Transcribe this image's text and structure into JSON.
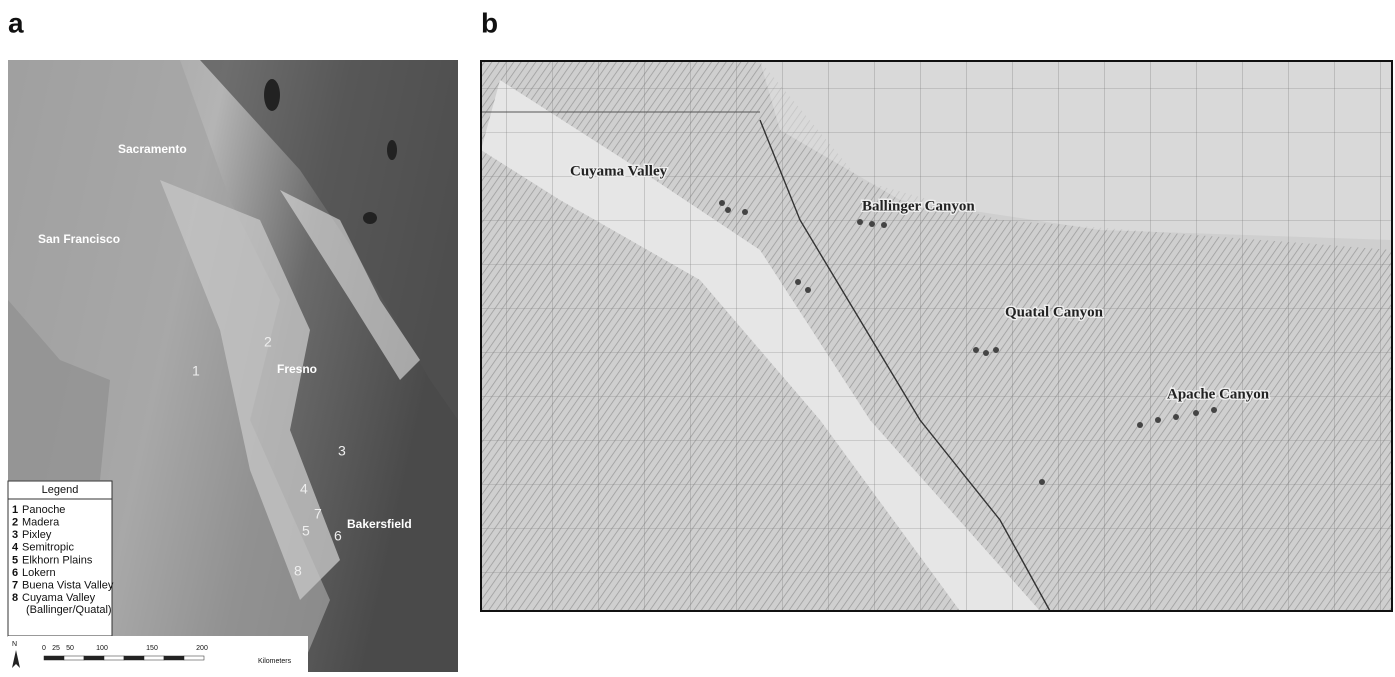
{
  "panels": [
    {
      "label": "a",
      "cities": [
        "Sacramento",
        "San Francisco",
        "Fresno",
        "Bakersfield"
      ],
      "sites": [
        "1",
        "2",
        "3",
        "4",
        "5",
        "6",
        "7",
        "8"
      ],
      "legend": {
        "title": "Legend",
        "entries": [
          {
            "number": "1",
            "name": "Panoche"
          },
          {
            "number": "2",
            "name": "Madera"
          },
          {
            "number": "3",
            "name": "Pixley"
          },
          {
            "number": "4",
            "name": "Semitropic"
          },
          {
            "number": "5",
            "name": "Elkhorn Plains"
          },
          {
            "number": "6",
            "name": "Lokern"
          },
          {
            "number": "7",
            "name": "Buena Vista Valley"
          },
          {
            "number": "8",
            "name": "Cuyama Valley",
            "note": "(Ballinger/Quatal)"
          }
        ]
      },
      "scale": {
        "north": "N",
        "ticks": [
          "0",
          "25",
          "50",
          "100",
          "150",
          "200"
        ],
        "unit": "Kilometers"
      }
    },
    {
      "label": "b",
      "places": [
        "Cuyama Valley",
        "Ballinger Canyon",
        "Quatal Canyon",
        "Apache Canyon"
      ]
    }
  ]
}
